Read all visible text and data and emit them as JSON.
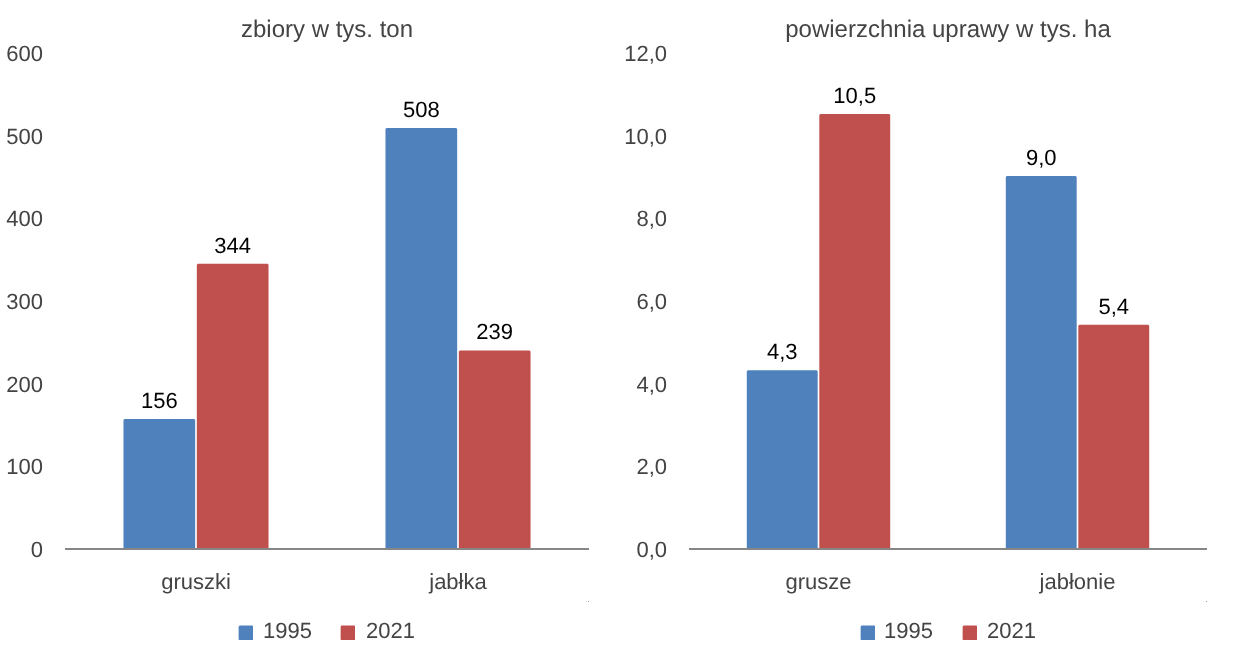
{
  "chart_data": [
    {
      "type": "bar",
      "title": "zbiory w tys. ton",
      "categories": [
        "gruszki",
        "jabłka"
      ],
      "series": [
        {
          "name": "1995",
          "color": "#4f81bd",
          "values": [
            156,
            508
          ]
        },
        {
          "name": "2021",
          "color": "#c0504d",
          "values": [
            344,
            239
          ]
        }
      ],
      "ylim": [
        0,
        600
      ],
      "yticks": [
        0,
        100,
        200,
        300,
        400,
        500,
        600
      ],
      "data_labels": true,
      "legend": "bottom",
      "grid": false
    },
    {
      "type": "bar",
      "title": "powierzchnia uprawy w tys. ha",
      "categories": [
        "grusze",
        "jabłonie"
      ],
      "series": [
        {
          "name": "1995",
          "color": "#4f81bd",
          "values": [
            4.3,
            9.0
          ],
          "value_labels": [
            "4,3",
            "9,0"
          ]
        },
        {
          "name": "2021",
          "color": "#c0504d",
          "values": [
            10.5,
            5.4
          ],
          "value_labels": [
            "10,5",
            "5,4"
          ]
        }
      ],
      "ylim": [
        0,
        12
      ],
      "yticks": [
        {
          "value": 0,
          "label": "0,0"
        },
        {
          "value": 2,
          "label": "2,0"
        },
        {
          "value": 4,
          "label": "4,0"
        },
        {
          "value": 6,
          "label": "6,0"
        },
        {
          "value": 8,
          "label": "8,0"
        },
        {
          "value": 10,
          "label": "10,0"
        },
        {
          "value": 12,
          "label": "12,0"
        }
      ],
      "legend": "bottom",
      "grid": false
    }
  ]
}
